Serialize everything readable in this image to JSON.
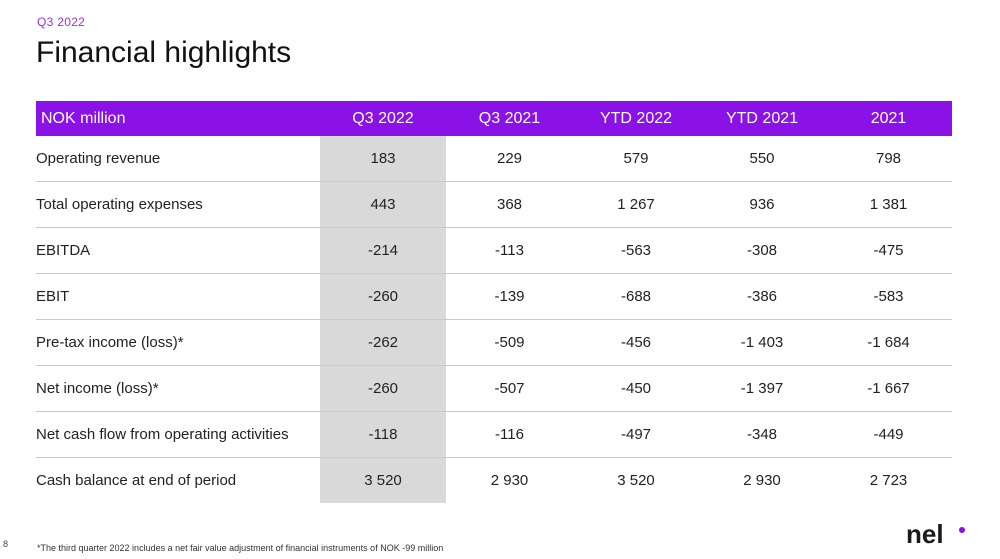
{
  "header": {
    "kicker": "Q3 2022",
    "title": "Financial highlights"
  },
  "table": {
    "columns": [
      "NOK million",
      "Q3 2022",
      "Q3 2021",
      "YTD 2022",
      "YTD 2021",
      "2021"
    ],
    "rows": [
      {
        "label": "Operating revenue",
        "values": [
          "183",
          "229",
          "579",
          "550",
          "798"
        ]
      },
      {
        "label": "Total operating expenses",
        "values": [
          "443",
          "368",
          "1 267",
          "936",
          "1 381"
        ]
      },
      {
        "label": "EBITDA",
        "values": [
          "-214",
          "-113",
          "-563",
          "-308",
          "-475"
        ]
      },
      {
        "label": "EBIT",
        "values": [
          "-260",
          "-139",
          "-688",
          "-386",
          "-583"
        ]
      },
      {
        "label": "Pre-tax income (loss)*",
        "values": [
          "-262",
          "-509",
          "-456",
          "-1 403",
          "-1 684"
        ]
      },
      {
        "label": "Net income (loss)*",
        "values": [
          "-260",
          "-507",
          "-450",
          "-1 397",
          "-1 667"
        ]
      },
      {
        "label": "Net cash flow from operating activities",
        "values": [
          "-118",
          "-116",
          "-497",
          "-348",
          "-449"
        ]
      },
      {
        "label": "Cash balance at end of period",
        "values": [
          "3 520",
          "2 930",
          "3 520",
          "2 930",
          "2 723"
        ]
      }
    ]
  },
  "footnote": "*The third quarter 2022 includes a net fair value adjustment of financial instruments of NOK -99 million",
  "page_number": "8",
  "logo": {
    "text": "nel",
    "dot_color": "#8a12e6"
  },
  "colors": {
    "accent": "#8a12e6",
    "kicker": "#9b30e8",
    "highlight_column": "#d9d9d9"
  }
}
